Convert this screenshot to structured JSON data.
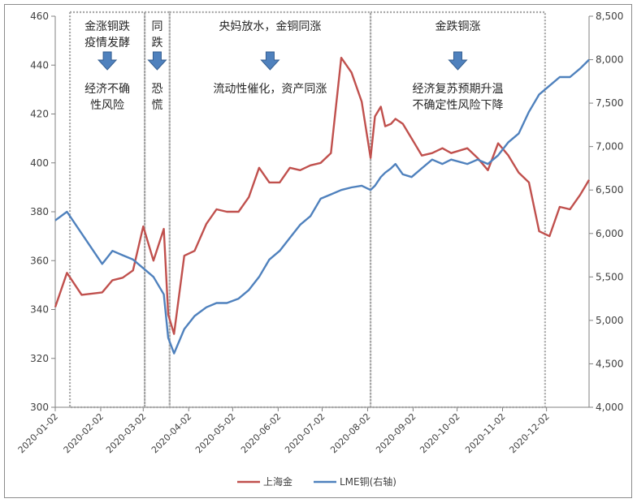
{
  "chart_data": {
    "type": "line",
    "title": "",
    "x": [
      "2020-01-02",
      "2020-01-10",
      "2020-01-20",
      "2020-02-03",
      "2020-02-10",
      "2020-02-17",
      "2020-02-24",
      "2020-03-02",
      "2020-03-09",
      "2020-03-16",
      "2020-03-19",
      "2020-03-23",
      "2020-03-30",
      "2020-04-06",
      "2020-04-14",
      "2020-04-21",
      "2020-04-28",
      "2020-05-06",
      "2020-05-13",
      "2020-05-20",
      "2020-05-27",
      "2020-06-03",
      "2020-06-10",
      "2020-06-17",
      "2020-06-24",
      "2020-07-01",
      "2020-07-08",
      "2020-07-15",
      "2020-07-22",
      "2020-07-29",
      "2020-08-04",
      "2020-08-07",
      "2020-08-11",
      "2020-08-14",
      "2020-08-18",
      "2020-08-21",
      "2020-08-26",
      "2020-09-01",
      "2020-09-08",
      "2020-09-15",
      "2020-09-22",
      "2020-09-28",
      "2020-10-09",
      "2020-10-16",
      "2020-10-23",
      "2020-10-30",
      "2020-11-06",
      "2020-11-13",
      "2020-11-20",
      "2020-11-27",
      "2020-12-04",
      "2020-12-11",
      "2020-12-18",
      "2020-12-25",
      "2020-12-31"
    ],
    "series": [
      {
        "name": "上海金",
        "axis": "left",
        "color": "#c0504d",
        "values": [
          341,
          355,
          346,
          347,
          352,
          353,
          356,
          374,
          360,
          373,
          338,
          330,
          362,
          364,
          375,
          381,
          380,
          380,
          386,
          398,
          392,
          392,
          398,
          397,
          399,
          400,
          404,
          443,
          437,
          425,
          402,
          419,
          423,
          415,
          416,
          418,
          416,
          410,
          403,
          404,
          406,
          404,
          406,
          402,
          397,
          408,
          403,
          396,
          392,
          372,
          370,
          382,
          381,
          387,
          393
        ]
      },
      {
        "name": "LME铜(右轴)",
        "axis": "right",
        "color": "#4f81bd",
        "values": [
          6150,
          6250,
          6000,
          5650,
          5800,
          5750,
          5700,
          5600,
          5500,
          5300,
          4800,
          4620,
          4900,
          5050,
          5150,
          5200,
          5200,
          5250,
          5350,
          5500,
          5700,
          5800,
          5950,
          6100,
          6200,
          6400,
          6450,
          6500,
          6530,
          6550,
          6500,
          6550,
          6650,
          6700,
          6750,
          6800,
          6680,
          6650,
          6750,
          6850,
          6800,
          6850,
          6800,
          6850,
          6800,
          6900,
          7050,
          7150,
          7400,
          7600,
          7700,
          7800,
          7800,
          7900,
          8000
        ]
      }
    ],
    "y_left": {
      "min": 300,
      "max": 460,
      "ticks": [
        "300",
        "320",
        "340",
        "360",
        "380",
        "400",
        "420",
        "440",
        "460"
      ]
    },
    "y_right": {
      "min": 4000,
      "max": 8500,
      "ticks": [
        "4,000",
        "4,500",
        "5,000",
        "5,500",
        "6,000",
        "6,500",
        "7,000",
        "7,500",
        "8,000",
        "8,500"
      ]
    },
    "x_ticks": [
      "2020-01-02",
      "2020-02-02",
      "2020-03-02",
      "2020-04-02",
      "2020-05-02",
      "2020-06-02",
      "2020-07-02",
      "2020-08-02",
      "2020-09-02",
      "2020-10-02",
      "2020-11-02",
      "2020-12-02"
    ],
    "annotations": [
      {
        "start": "2020-01-12",
        "end": "2020-03-03",
        "top_text": [
          "金涨铜跌",
          "疫情发酵"
        ],
        "bottom_text": [
          "经济不确",
          "性风险"
        ]
      },
      {
        "start": "2020-03-03",
        "end": "2020-03-20",
        "top_text": [
          "同",
          "跌"
        ],
        "bottom_text": [
          "恐",
          "慌"
        ]
      },
      {
        "start": "2020-03-20",
        "end": "2020-08-04",
        "top_text": [
          "央妈放水，金铜同涨"
        ],
        "bottom_text": [
          "流动性催化，资产同涨"
        ]
      },
      {
        "start": "2020-08-04",
        "end": "2020-12-01",
        "top_text": [
          "金跌铜涨"
        ],
        "bottom_text": [
          "经济复苏预期升温",
          "不确定性风险下降"
        ]
      }
    ],
    "legend": {
      "position": "bottom",
      "entries": [
        "上海金",
        "LME铜(右轴)"
      ]
    },
    "grid": false
  }
}
